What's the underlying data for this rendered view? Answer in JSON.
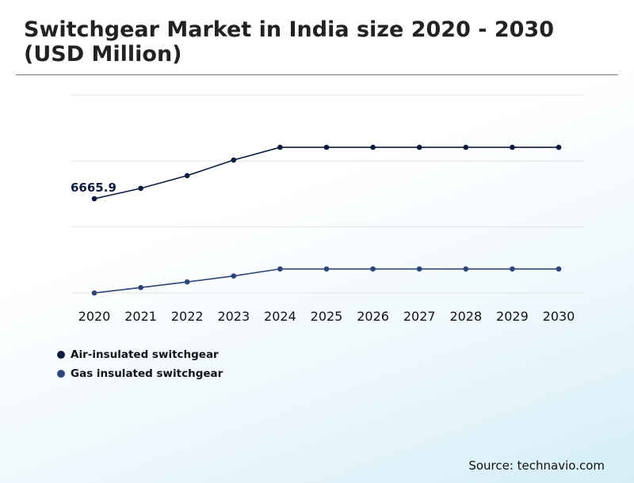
{
  "chart_data": {
    "type": "line",
    "title": "Switchgear Market in India size 2020 - 2030 (USD Million)",
    "x": [
      "2020",
      "2021",
      "2022",
      "2023",
      "2024",
      "2025",
      "2026",
      "2027",
      "2028",
      "2029",
      "2030"
    ],
    "ylim": [
      0,
      14000
    ],
    "grid": true,
    "legend_position": "bottom-left",
    "series": [
      {
        "name": "Air-insulated switchgear",
        "color": "#0d1b3e",
        "values": [
          6665.9,
          7400,
          8300,
          9400,
          10300,
          10300,
          10300,
          10300,
          10300,
          10300,
          10300
        ]
      },
      {
        "name": "Gas insulated switchgear",
        "color": "#2e4577",
        "values": [
          0,
          380,
          780,
          1200,
          1700,
          1700,
          1700,
          1700,
          1700,
          1700,
          1700
        ]
      }
    ],
    "annotations": [
      {
        "text": "6665.9",
        "series": 0,
        "index": 0
      }
    ]
  },
  "source": "Source: technavio.com"
}
